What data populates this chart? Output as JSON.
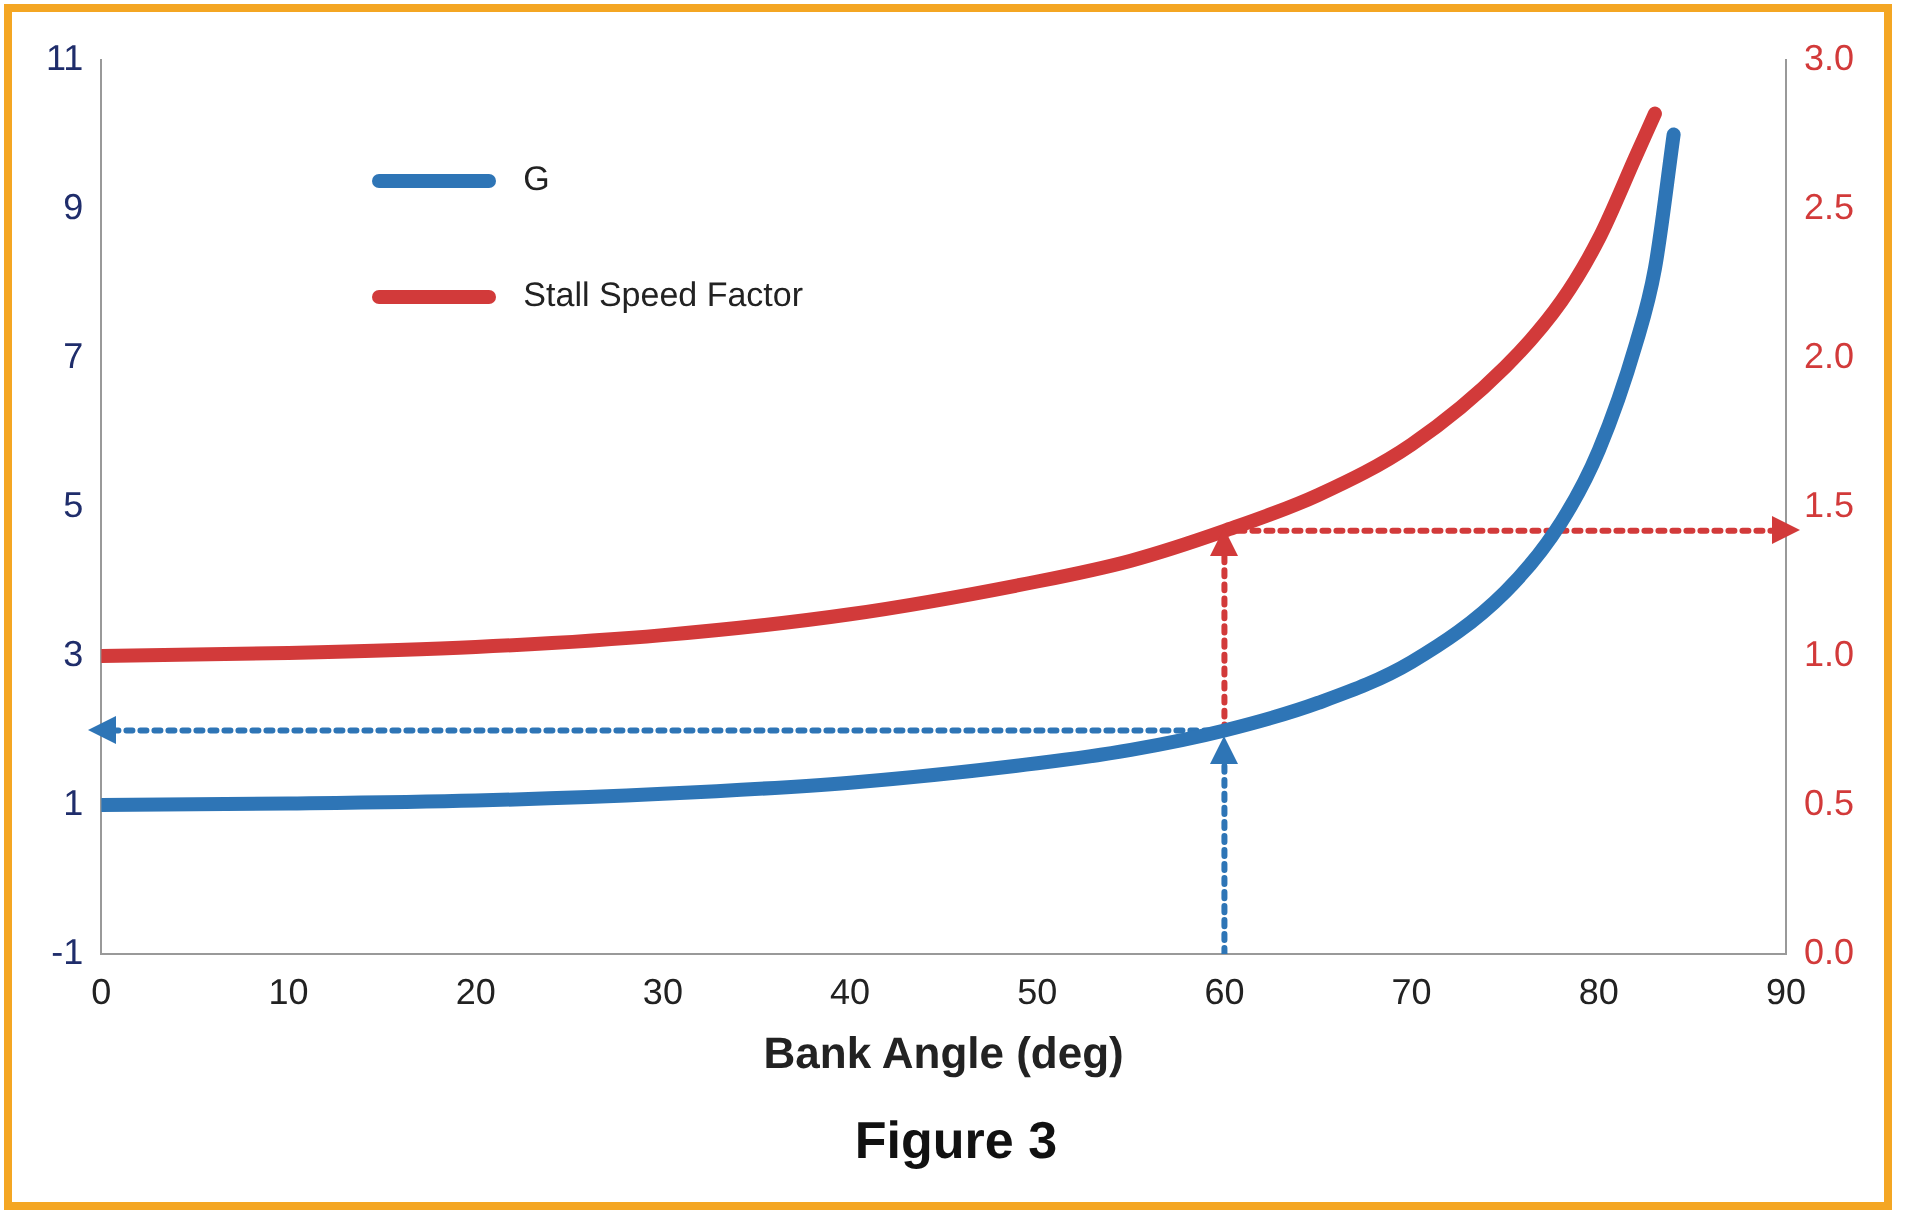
{
  "chart_data": {
    "type": "line",
    "title": "Figure 3",
    "xlabel": "Bank Angle (deg)",
    "xlim": [
      0,
      90
    ],
    "xticks": [
      0,
      10,
      20,
      30,
      40,
      50,
      60,
      70,
      80,
      90
    ],
    "ylim": [
      -1,
      11
    ],
    "yticks": [
      -1,
      1,
      3,
      5,
      7,
      9,
      11
    ],
    "y2lim": [
      0,
      3
    ],
    "y2ticks": [
      {
        "value": 0,
        "label": "0.0"
      },
      {
        "value": 0.5,
        "label": "0.5"
      },
      {
        "value": 1,
        "label": "1.0"
      },
      {
        "value": 1.5,
        "label": "1.5"
      },
      {
        "value": 2,
        "label": "2.0"
      },
      {
        "value": 2.5,
        "label": "2.5"
      },
      {
        "value": 3,
        "label": "3.0"
      }
    ],
    "grid": false,
    "legend": "top left",
    "series": [
      {
        "name": "G",
        "color": "#2e75b6",
        "line_style": "solid",
        "x": [
          0,
          10,
          20,
          30,
          40,
          50,
          55,
          60,
          65,
          70,
          75,
          78,
          80,
          82,
          83,
          84
        ],
        "values": [
          1,
          1.02,
          1.06,
          1.15,
          1.3,
          1.56,
          1.74,
          2,
          2.37,
          2.92,
          3.86,
          4.8,
          5.76,
          7.2,
          8.2,
          10
        ]
      },
      {
        "name": "Stall Speed Factor",
        "color": "#d23a3a",
        "line_style": "solid",
        "axis": "y2",
        "x": [
          0,
          10,
          20,
          30,
          40,
          50,
          55,
          60,
          65,
          70,
          75,
          78,
          80,
          82,
          83
        ],
        "values": [
          1,
          1.01,
          1.03,
          1.07,
          1.14,
          1.25,
          1.32,
          1.42,
          1.54,
          1.71,
          1.97,
          2.19,
          2.4,
          2.68,
          2.82
        ]
      },
      {
        "color": "#2e75b6",
        "line_style": "dotted",
        "x": [
          60,
          60
        ],
        "values": [
          -1,
          1.75
        ]
      },
      {
        "color": "#2e75b6",
        "line_style": "dotted",
        "x": [
          60,
          0
        ],
        "values": [
          2,
          2
        ]
      },
      {
        "color": "#d23a3a",
        "line_style": "dotted",
        "axis": "y2",
        "x": [
          60,
          60
        ],
        "values": [
          0.75,
          1.38
        ]
      },
      {
        "color": "#d23a3a",
        "line_style": "dotted",
        "axis": "y2",
        "x": [
          60,
          90
        ],
        "values": [
          1.42,
          1.42
        ]
      }
    ]
  }
}
